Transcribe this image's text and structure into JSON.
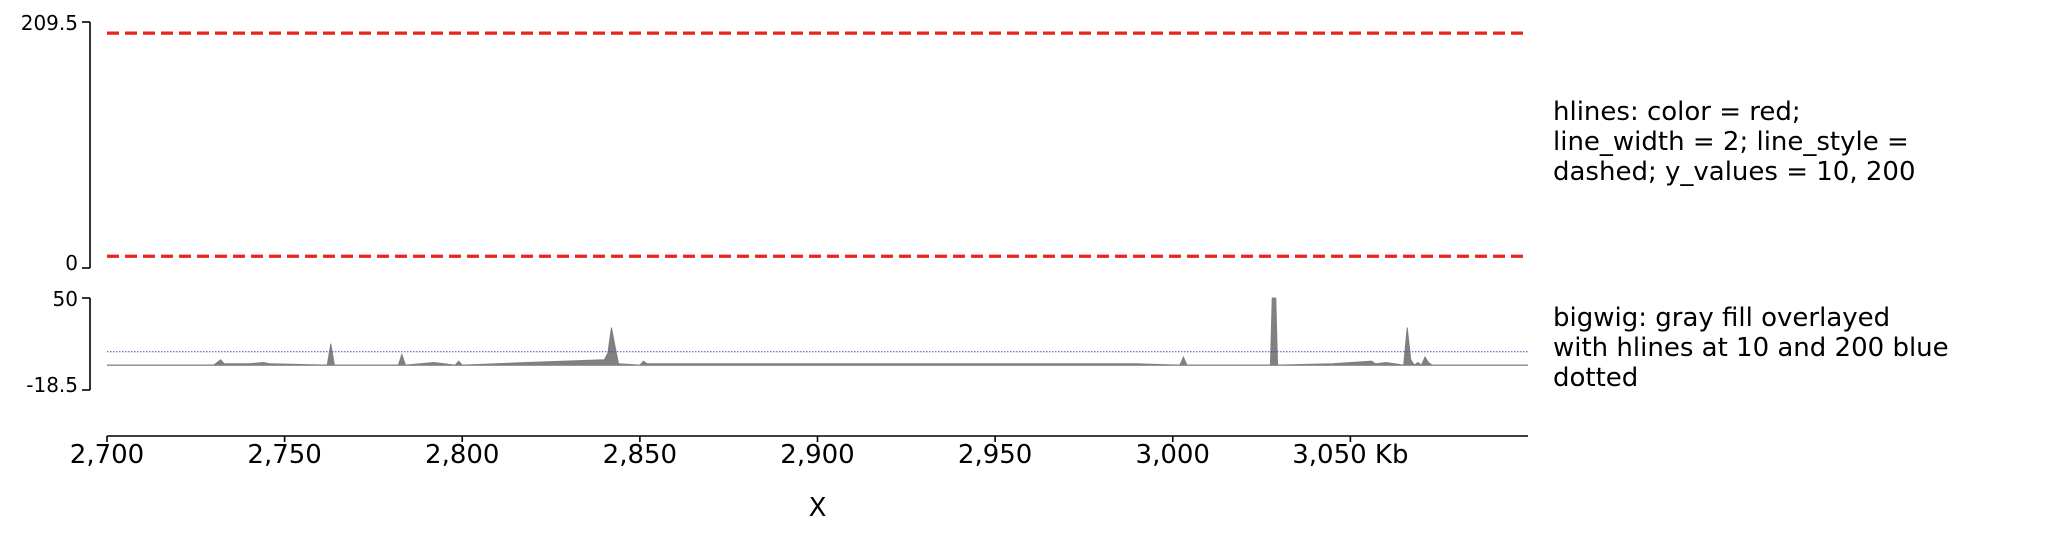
{
  "chart_data": [
    {
      "type": "line",
      "track": "hlines",
      "label_lines": [
        "hlines: color = red;",
        "line_width = 2; line_style =",
        "dashed; y_values = 10, 200"
      ],
      "ylim": [
        0,
        209.5
      ],
      "ytick_labels": [
        "209.5",
        "0"
      ],
      "hlines": [
        {
          "y": 10,
          "color": "#e8251c",
          "line_style": "dashed",
          "line_width": 2
        },
        {
          "y": 200,
          "color": "#e8251c",
          "line_style": "dashed",
          "line_width": 2
        }
      ]
    },
    {
      "type": "area",
      "track": "bigwig",
      "label_lines": [
        "bigwig: gray fill overlayed",
        "with hlines at 10 and 200 blue",
        "dotted"
      ],
      "ylim": [
        -18.5,
        50
      ],
      "ytick_labels": [
        "50",
        "-18.5"
      ],
      "fill_color": "#808080",
      "hlines": [
        {
          "y": 10,
          "color": "#3b4cc0",
          "line_style": "dotted"
        },
        {
          "y": 200,
          "color": "#3b4cc0",
          "line_style": "dotted"
        }
      ],
      "x": [
        2700,
        2730,
        2731,
        2732,
        2733,
        2740,
        2744,
        2746,
        2762,
        2763,
        2764,
        2782,
        2783,
        2784,
        2792,
        2798,
        2799,
        2800,
        2818,
        2840,
        2841,
        2842,
        2843,
        2844,
        2850,
        2851,
        2852,
        2880,
        2910,
        2960,
        2990,
        3002,
        3003,
        3004,
        3027.5,
        3028,
        3029,
        3029.5,
        3045,
        3056,
        3057,
        3060,
        3065,
        3066,
        3067,
        3068,
        3069,
        3070,
        3071,
        3072,
        3073,
        3100
      ],
      "y": [
        0,
        0,
        2,
        4,
        1,
        1,
        2,
        1,
        0,
        16,
        0,
        0,
        8,
        0,
        2,
        0,
        3,
        0,
        2,
        4,
        9,
        28,
        14,
        1,
        0,
        3,
        1,
        1,
        1,
        1,
        1,
        0,
        6,
        0,
        0,
        50,
        50,
        0,
        1,
        3,
        1,
        2,
        0,
        28,
        4,
        0,
        2,
        0,
        6,
        2,
        0,
        0
      ]
    }
  ],
  "x_axis": {
    "range": [
      2700,
      3100
    ],
    "ticks": [
      2700,
      2750,
      2800,
      2850,
      2900,
      2950,
      3000,
      3050
    ],
    "tick_labels": [
      "2,700",
      "2,750",
      "2,800",
      "2,850",
      "2,900",
      "2,950",
      "3,000",
      "3,050 Kb"
    ],
    "title": "X"
  },
  "colors": {
    "hlines_red": "#e8251c",
    "hlines_blue": "#3b4cc0",
    "fill_gray": "#808080"
  }
}
